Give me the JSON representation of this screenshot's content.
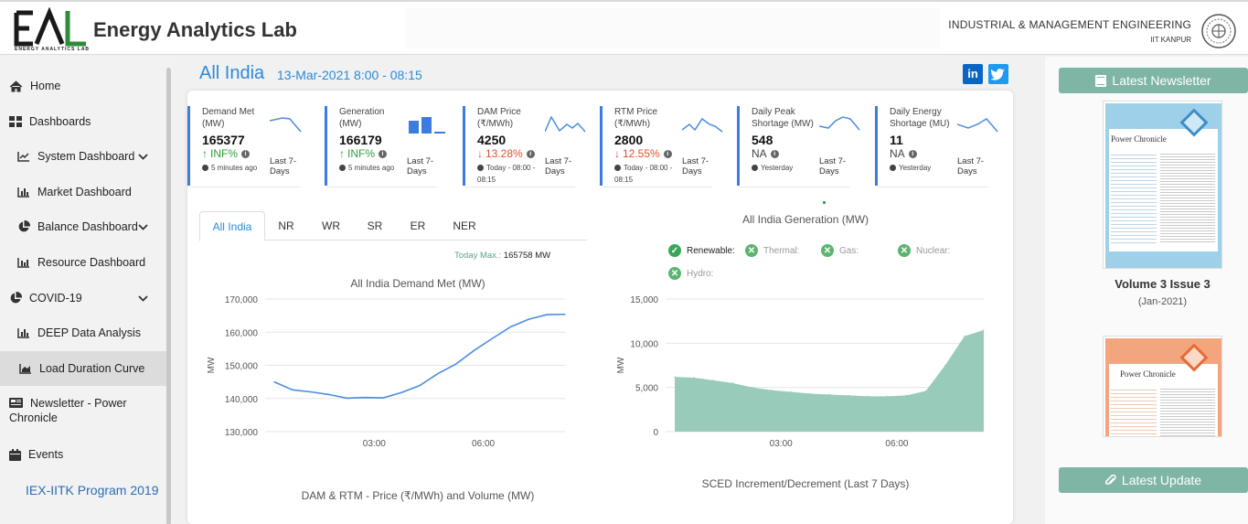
{
  "header": {
    "logo_text": "ENERGY ANALYTICS LAB",
    "title": "Energy Analytics Lab",
    "department": "INDUSTRIAL & MANAGEMENT ENGINEERING",
    "institute": "IIT KANPUR"
  },
  "sidebar": {
    "items": [
      {
        "label": "Home",
        "icon": "home-icon"
      },
      {
        "label": "Dashboards",
        "icon": "dashboard-icon"
      },
      {
        "label": "System Dashboard",
        "icon": "line-chart-icon"
      },
      {
        "label": "Market Dashboard",
        "icon": "bar-chart-icon"
      },
      {
        "label": "Balance Dashboard",
        "icon": "pie-chart-icon"
      },
      {
        "label": "Resource Dashboard",
        "icon": "bar-chart-icon"
      },
      {
        "label": "COVID-19",
        "icon": "pie-chart-icon"
      },
      {
        "label": "DEEP Data Analysis",
        "icon": "bar-chart-icon"
      },
      {
        "label": "Load Duration Curve",
        "icon": "area-chart-icon"
      },
      {
        "label": "Newsletter - Power",
        "label2": "Chronicle",
        "icon": "newspaper-icon"
      },
      {
        "label": "Events",
        "icon": "calendar-icon"
      }
    ],
    "program_link": "IEX-IITK Program 2019"
  },
  "main": {
    "title": "All India",
    "datetime": "13-Mar-2021 8:00 - 08:15",
    "social": [
      "in",
      "t"
    ]
  },
  "kpis": [
    {
      "label": "Demand Met (MW)",
      "value": "165377",
      "change": "INF%",
      "direction": "up",
      "time": "5 minutes ago",
      "period": "Last 7-Days"
    },
    {
      "label": "Generation (MW)",
      "value": "166179",
      "change": "INF%",
      "direction": "up",
      "time": "5 minutes ago",
      "period": "Last 7-Days"
    },
    {
      "label": "DAM Price (₹/MWh)",
      "value": "4250",
      "change": "13.28%",
      "direction": "down",
      "time": "Today - 08:00 - 08:15",
      "period": "Last 7-Days"
    },
    {
      "label": "RTM Price (₹/MWh)",
      "value": "2800",
      "change": "12.55%",
      "direction": "down",
      "time": "Today - 08:00 - 08:15",
      "period": "Last 7-Days"
    },
    {
      "label": "Daily Peak Shortage (MW)",
      "value": "548",
      "change": "NA",
      "direction": "none",
      "time": "Yesterday",
      "period": "Last 7-Days"
    },
    {
      "label": "Daily Energy Shortage (MU)",
      "value": "11",
      "change": "NA",
      "direction": "none",
      "time": "Yesterday",
      "period": "Last 7-Days"
    }
  ],
  "tabs": [
    "All India",
    "NR",
    "WR",
    "SR",
    "ER",
    "NER"
  ],
  "today_max": {
    "label": "Today Max.:",
    "value": "165758 MW"
  },
  "demand_chart": {
    "chart_data": {
      "type": "line",
      "title": "All India Demand Met (MW)",
      "ylabel": "MW",
      "ylim": [
        130000,
        170000
      ],
      "yticks": [
        "170,000",
        "160,000",
        "150,000",
        "140,000",
        "130,000"
      ],
      "xticks": [
        "03:00",
        "06:00"
      ],
      "x": [
        "00:15",
        "00:45",
        "01:15",
        "01:45",
        "02:15",
        "02:45",
        "03:15",
        "03:45",
        "04:15",
        "04:45",
        "05:15",
        "05:45",
        "06:15",
        "06:45",
        "07:15",
        "07:45",
        "08:00"
      ],
      "values": [
        145000,
        142600,
        142000,
        141200,
        140100,
        140300,
        140200,
        141800,
        143900,
        147500,
        150400,
        154500,
        158100,
        161600,
        163900,
        165300,
        165377
      ],
      "color": "#4a8de0"
    }
  },
  "generation_chart": {
    "title": "All India Generation (MW)",
    "legend": [
      {
        "label": "Renewable:",
        "active": true
      },
      {
        "label": "Thermal:",
        "active": false
      },
      {
        "label": "Gas:",
        "active": false
      },
      {
        "label": "Nuclear:",
        "active": false
      },
      {
        "label": "Hydro:",
        "active": false
      }
    ],
    "chart_data": {
      "type": "area",
      "series_name": "Renewable",
      "ylabel": "MW",
      "ylim": [
        0,
        15000
      ],
      "yticks": [
        "15,000",
        "10,000",
        "5,000",
        "0"
      ],
      "xticks": [
        "03:00",
        "06:00"
      ],
      "x": [
        "00:15",
        "00:45",
        "01:15",
        "01:45",
        "02:15",
        "02:45",
        "03:15",
        "03:45",
        "04:15",
        "04:45",
        "05:15",
        "05:45",
        "06:15",
        "06:45",
        "07:15",
        "07:45",
        "08:00"
      ],
      "values": [
        6200,
        6100,
        5800,
        5500,
        5000,
        4700,
        4500,
        4300,
        4200,
        4100,
        4000,
        4000,
        4100,
        4600,
        7500,
        10800,
        11500
      ],
      "color": "#8ec5b4"
    }
  },
  "bottom_titles": {
    "left": "DAM & RTM - Price (₹/MWh) and Volume (MW)",
    "right": "SCED Increment/Decrement (Last 7 Days)"
  },
  "right": {
    "newsletter_button": "Latest Newsletter",
    "cover1_title": "Power Chronicle",
    "volume": "Volume 3 Issue 3",
    "volume_date": "(Jan-2021)",
    "cover2_title": "Power Chronicle",
    "update_button": "Latest Update",
    "colors": {
      "cover1": "#9fd0ea",
      "cover2": "#f3a57e",
      "button": "#7fb5a4"
    }
  }
}
